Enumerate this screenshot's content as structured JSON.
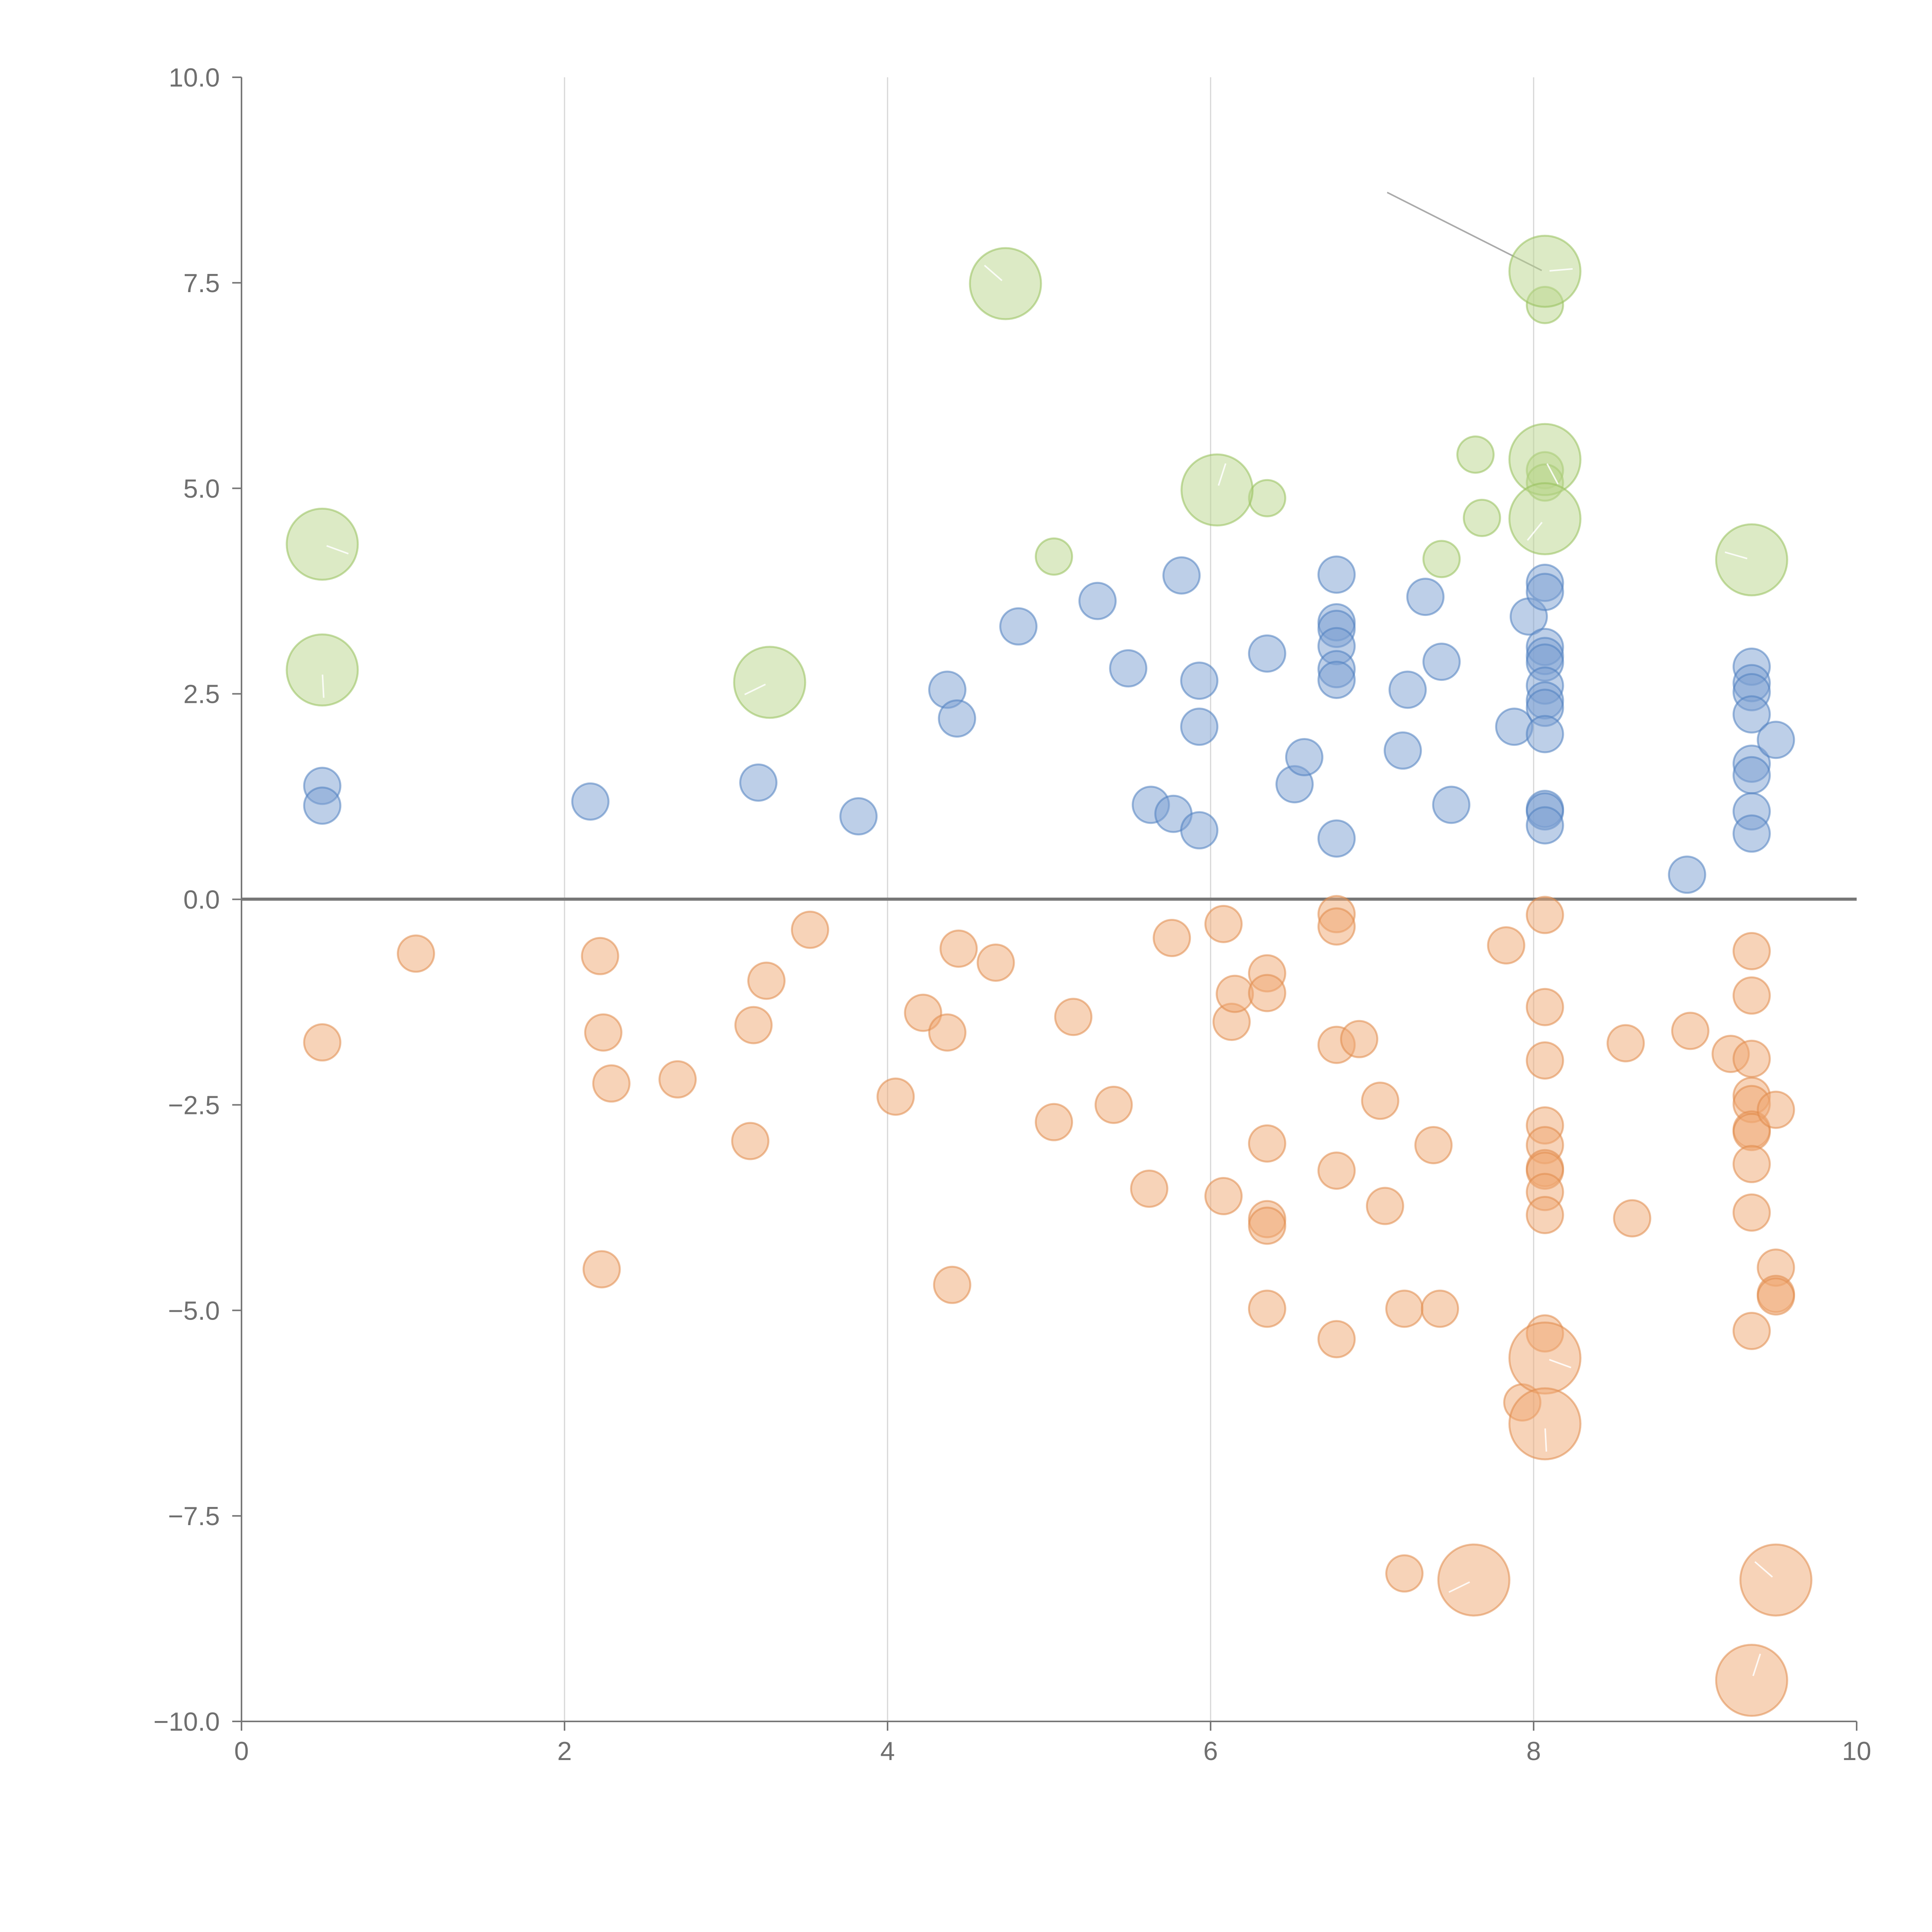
{
  "chart_data": {
    "type": "scatter",
    "title": "",
    "xlabel": "",
    "ylabel": "",
    "xlim": [
      0,
      10
    ],
    "ylim": [
      -10,
      10
    ],
    "grid": "vertical",
    "x_ticks": [
      "0",
      "2",
      "4",
      "6",
      "8",
      "10"
    ],
    "y_ticks": [
      "10.0",
      "7.5",
      "5.0",
      "2.5",
      "0.0",
      "−2.5",
      "−5.0",
      "−7.5",
      "−10.0"
    ],
    "x_tick_values": [
      0,
      2,
      4,
      6,
      8,
      10
    ],
    "y_tick_values": [
      10,
      7.5,
      5,
      2.5,
      0,
      -2.5,
      -5,
      -7.5,
      -10
    ],
    "colors": {
      "blue": "#7b9fd1",
      "orange": "#f0a872",
      "green": "#b9d68c",
      "blue_stroke": "#4f7fc0",
      "orange_stroke": "#e08a4a",
      "green_stroke": "#96bf5a"
    },
    "series": [
      {
        "name": "blue",
        "size": "small",
        "points": [
          [
            0.5,
            1.38
          ],
          [
            0.5,
            1.14
          ],
          [
            2.16,
            1.19
          ],
          [
            3.2,
            1.42
          ],
          [
            3.82,
            1.01
          ],
          [
            4.37,
            2.55
          ],
          [
            4.43,
            2.2
          ],
          [
            4.81,
            3.32
          ],
          [
            5.3,
            3.63
          ],
          [
            5.49,
            2.81
          ],
          [
            5.63,
            1.15
          ],
          [
            5.77,
            1.04
          ],
          [
            5.82,
            3.94
          ],
          [
            5.93,
            2.66
          ],
          [
            5.93,
            2.1
          ],
          [
            5.93,
            0.84
          ],
          [
            6.35,
            2.99
          ],
          [
            6.52,
            1.4
          ],
          [
            6.58,
            1.73
          ],
          [
            6.78,
            3.95
          ],
          [
            6.78,
            3.37
          ],
          [
            6.78,
            3.29
          ],
          [
            6.78,
            3.08
          ],
          [
            6.78,
            2.8
          ],
          [
            6.78,
            2.67
          ],
          [
            6.78,
            0.74
          ],
          [
            7.19,
            1.81
          ],
          [
            7.22,
            2.55
          ],
          [
            7.33,
            3.68
          ],
          [
            7.43,
            2.89
          ],
          [
            7.49,
            1.15
          ],
          [
            7.88,
            2.1
          ],
          [
            7.97,
            3.44
          ],
          [
            8.07,
            3.85
          ],
          [
            8.07,
            3.74
          ],
          [
            8.07,
            3.07
          ],
          [
            8.07,
            2.96
          ],
          [
            8.07,
            2.88
          ],
          [
            8.07,
            2.6
          ],
          [
            8.07,
            2.42
          ],
          [
            8.07,
            2.33
          ],
          [
            8.07,
            2.01
          ],
          [
            8.07,
            1.1
          ],
          [
            8.07,
            1.07
          ],
          [
            8.07,
            0.9
          ],
          [
            8.95,
            0.3
          ],
          [
            9.35,
            2.83
          ],
          [
            9.35,
            2.63
          ],
          [
            9.35,
            2.52
          ],
          [
            9.35,
            2.25
          ],
          [
            9.35,
            1.65
          ],
          [
            9.35,
            1.51
          ],
          [
            9.35,
            1.07
          ],
          [
            9.35,
            0.8
          ],
          [
            9.5,
            1.94
          ]
        ]
      },
      {
        "name": "orange",
        "size": "small",
        "points": [
          [
            0.5,
            -1.74
          ],
          [
            1.08,
            -0.66
          ],
          [
            2.22,
            -0.69
          ],
          [
            2.24,
            -1.62
          ],
          [
            2.29,
            -2.24
          ],
          [
            2.23,
            -4.5
          ],
          [
            2.7,
            -2.19
          ],
          [
            3.15,
            -2.94
          ],
          [
            3.17,
            -1.53
          ],
          [
            3.25,
            -0.99
          ],
          [
            3.52,
            -0.37
          ],
          [
            4.05,
            -2.4
          ],
          [
            4.22,
            -1.38
          ],
          [
            4.37,
            -1.62
          ],
          [
            4.4,
            -4.69
          ],
          [
            4.44,
            -0.6
          ],
          [
            4.67,
            -0.77
          ],
          [
            5.03,
            -2.71
          ],
          [
            5.15,
            -1.43
          ],
          [
            5.4,
            -2.5
          ],
          [
            5.62,
            -3.52
          ],
          [
            5.76,
            -0.47
          ],
          [
            6.08,
            -3.61
          ],
          [
            6.08,
            -0.3
          ],
          [
            6.13,
            -1.49
          ],
          [
            6.15,
            -1.15
          ],
          [
            6.35,
            -0.9
          ],
          [
            6.35,
            -1.14
          ],
          [
            6.35,
            -2.97
          ],
          [
            6.35,
            -3.89
          ],
          [
            6.35,
            -3.97
          ],
          [
            6.35,
            -4.98
          ],
          [
            6.78,
            -0.18
          ],
          [
            6.78,
            -0.33
          ],
          [
            6.78,
            -1.77
          ],
          [
            6.78,
            -3.3
          ],
          [
            6.78,
            -5.35
          ],
          [
            6.92,
            -1.7
          ],
          [
            7.05,
            -2.45
          ],
          [
            7.08,
            -3.73
          ],
          [
            7.2,
            -4.98
          ],
          [
            7.2,
            -8.2
          ],
          [
            7.38,
            -2.99
          ],
          [
            7.42,
            -4.98
          ],
          [
            7.83,
            -0.56
          ],
          [
            8.07,
            -0.19
          ],
          [
            8.07,
            -1.31
          ],
          [
            8.07,
            -1.96
          ],
          [
            8.07,
            -2.75
          ],
          [
            8.07,
            -2.99
          ],
          [
            8.07,
            -3.27
          ],
          [
            8.07,
            -3.3
          ],
          [
            8.07,
            -3.56
          ],
          [
            8.07,
            -3.84
          ],
          [
            8.07,
            -5.28
          ],
          [
            7.93,
            -6.12
          ],
          [
            8.57,
            -1.75
          ],
          [
            8.61,
            -3.88
          ],
          [
            8.97,
            -1.6
          ],
          [
            9.22,
            -1.88
          ],
          [
            9.35,
            -0.63
          ],
          [
            9.35,
            -1.17
          ],
          [
            9.35,
            -1.94
          ],
          [
            9.35,
            -2.39
          ],
          [
            9.35,
            -2.49
          ],
          [
            9.35,
            -2.8
          ],
          [
            9.35,
            -2.83
          ],
          [
            9.35,
            -3.22
          ],
          [
            9.35,
            -3.81
          ],
          [
            9.35,
            -5.25
          ],
          [
            9.5,
            -2.56
          ],
          [
            9.5,
            -4.48
          ],
          [
            9.5,
            -4.8
          ],
          [
            9.5,
            -4.83
          ]
        ]
      },
      {
        "name": "green",
        "size": "small",
        "points": [
          [
            5.03,
            4.17
          ],
          [
            6.35,
            4.88
          ],
          [
            7.43,
            4.14
          ],
          [
            7.64,
            5.41
          ],
          [
            7.68,
            4.64
          ],
          [
            8.07,
            7.23
          ],
          [
            8.07,
            5.22
          ],
          [
            8.07,
            5.07
          ]
        ]
      },
      {
        "name": "green",
        "size": "large",
        "points": [
          [
            0.5,
            4.32
          ],
          [
            0.5,
            2.79
          ],
          [
            3.27,
            2.64
          ],
          [
            4.73,
            7.49
          ],
          [
            6.04,
            4.98
          ],
          [
            8.07,
            7.64
          ],
          [
            8.07,
            5.35
          ],
          [
            8.07,
            4.63
          ],
          [
            9.35,
            4.13
          ]
        ]
      },
      {
        "name": "orange",
        "size": "large",
        "points": [
          [
            8.07,
            -5.58
          ],
          [
            8.07,
            -6.38
          ],
          [
            7.63,
            -8.28
          ],
          [
            9.5,
            -8.28
          ],
          [
            9.35,
            -9.5
          ]
        ]
      }
    ]
  }
}
